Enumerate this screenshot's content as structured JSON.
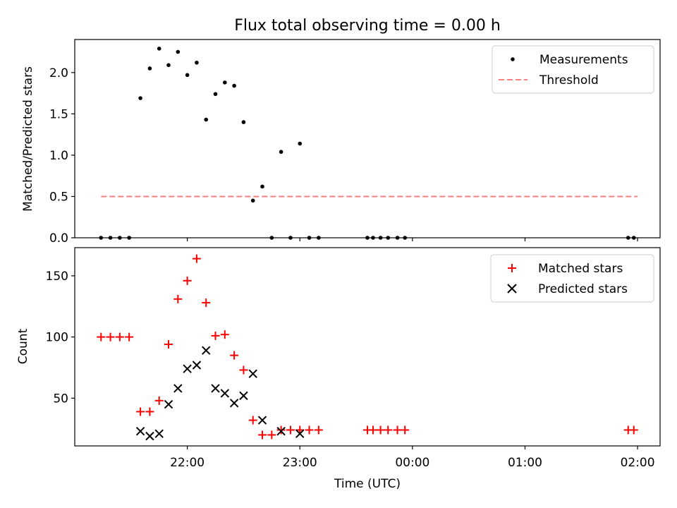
{
  "title": "Flux total observing time = 0.00 h",
  "xlabel": "Time (UTC)",
  "xticks": [
    {
      "t": 22.0,
      "label": "22:00"
    },
    {
      "t": 23.0,
      "label": "23:00"
    },
    {
      "t": 24.0,
      "label": "00:00"
    },
    {
      "t": 25.0,
      "label": "01:00"
    },
    {
      "t": 26.0,
      "label": "02:00"
    }
  ],
  "xlim": [
    21.0,
    26.2
  ],
  "colors": {
    "matched": "#ff0000",
    "predicted": "#000000",
    "threshold": "#ff7f7f",
    "measurement": "#000000"
  },
  "chart_data": [
    {
      "type": "scatter",
      "ylabel": "Matched/Predicted stars",
      "ylim": [
        0,
        2.4
      ],
      "yticks": [
        {
          "v": 0,
          "label": "0.0"
        },
        {
          "v": 0.5,
          "label": "0.5"
        },
        {
          "v": 1.0,
          "label": "1.0"
        },
        {
          "v": 1.5,
          "label": "1.5"
        },
        {
          "v": 2.0,
          "label": "2.0"
        }
      ],
      "legend": {
        "position": "upper right",
        "measurements_label": "Measurements",
        "threshold_label": "Threshold"
      },
      "threshold": {
        "value": 0.5,
        "x_range": [
          21.2333,
          26.0
        ]
      },
      "series": [
        {
          "name": "Measurements",
          "x": [
            21.2333,
            21.3167,
            21.4,
            21.4833,
            21.5833,
            21.6667,
            21.75,
            21.8333,
            21.9167,
            22.0,
            22.0833,
            22.1667,
            22.25,
            22.3333,
            22.4167,
            22.5,
            22.5833,
            22.6667,
            22.75,
            22.8333,
            22.9167,
            23.0,
            23.0833,
            23.1667,
            23.6,
            23.65,
            23.7167,
            23.7833,
            23.8667,
            23.9333,
            25.9167,
            25.9667
          ],
          "y": [
            0,
            0,
            0,
            0,
            1.69,
            2.05,
            2.29,
            2.09,
            2.25,
            1.97,
            2.12,
            1.43,
            1.74,
            1.88,
            1.84,
            1.4,
            0.45,
            0.62,
            0,
            1.04,
            0,
            1.14,
            0,
            0,
            0,
            0,
            0,
            0,
            0,
            0,
            0,
            0
          ]
        }
      ]
    },
    {
      "type": "scatter",
      "ylabel": "Count",
      "ylim": [
        11,
        173
      ],
      "yticks": [
        {
          "v": 50,
          "label": "50"
        },
        {
          "v": 100,
          "label": "100"
        },
        {
          "v": 150,
          "label": "150"
        }
      ],
      "legend": {
        "position": "upper right",
        "matched_label": "Matched stars",
        "predicted_label": "Predicted stars"
      },
      "series": [
        {
          "name": "Matched stars",
          "marker": "+",
          "x": [
            21.2333,
            21.3167,
            21.4,
            21.4833,
            21.5833,
            21.6667,
            21.75,
            21.8333,
            21.9167,
            22.0,
            22.0833,
            22.1667,
            22.25,
            22.3333,
            22.4167,
            22.5,
            22.5833,
            22.6667,
            22.75,
            22.8333,
            22.9167,
            23.0,
            23.0833,
            23.1667,
            23.6,
            23.65,
            23.7167,
            23.7833,
            23.8667,
            23.9333,
            25.9167,
            25.9667
          ],
          "y": [
            100,
            100,
            100,
            100,
            39,
            39,
            48,
            94,
            131,
            146,
            164,
            128,
            101,
            102,
            85,
            73,
            32,
            20,
            20,
            24,
            24,
            24,
            24,
            24,
            24,
            24,
            24,
            24,
            24,
            24,
            24,
            24
          ]
        },
        {
          "name": "Predicted stars",
          "marker": "x",
          "x": [
            21.5833,
            21.6667,
            21.75,
            21.8333,
            21.9167,
            22.0,
            22.0833,
            22.1667,
            22.25,
            22.3333,
            22.4167,
            22.5,
            22.5833,
            22.6667,
            22.8333,
            23.0
          ],
          "y": [
            23,
            19,
            21,
            45,
            58,
            74,
            77,
            89,
            58,
            54,
            46,
            52,
            70,
            32,
            23,
            21
          ]
        }
      ]
    }
  ]
}
